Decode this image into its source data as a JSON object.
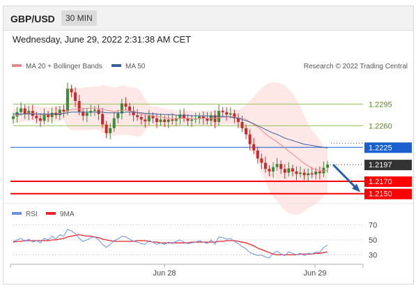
{
  "header": {
    "symbol": "GBP/USD",
    "timeframe": "30 MIN"
  },
  "datetime": "Wednesday, June 29, 2022 2:31:38 AM CET",
  "legend": {
    "ma20_bb": "MA 20 + Bollinger Bands",
    "ma50": "MA 50",
    "source": "Research © 2022 Trading Central"
  },
  "colors": {
    "ma20": "#e88a8a",
    "ma50": "#3a5f9a",
    "bands": "#fde0df",
    "up": "#3a8a3a",
    "down": "#cc2a2a",
    "support": "#ff0000",
    "resistance_green": "#8fbf4a",
    "pivot_blue": "#1a5fd0",
    "rsi": "#6b8ee6",
    "rsi_ma": "#e8242a"
  },
  "chart_data": [
    {
      "type": "candlestick",
      "title": "",
      "ylim": [
        1.2135,
        1.2345
      ],
      "x_labels": [
        "Jun 28",
        "Jun 29"
      ],
      "levels": [
        {
          "value": 1.2295,
          "label": "1.2295",
          "style": "resistance"
        },
        {
          "value": 1.226,
          "label": "1.2260",
          "style": "resistance"
        },
        {
          "value": 1.2225,
          "label": "1.2225",
          "style": "pivot"
        },
        {
          "value": 1.2197,
          "label": "1.2197",
          "style": "last"
        },
        {
          "value": 1.217,
          "label": "1.2170",
          "style": "support"
        },
        {
          "value": 1.215,
          "label": "1.2150",
          "style": "support"
        }
      ],
      "closes": [
        1.2275,
        1.2282,
        1.2288,
        1.2279,
        1.2284,
        1.2276,
        1.2272,
        1.2268,
        1.2278,
        1.2274,
        1.2281,
        1.2277,
        1.2286,
        1.2283,
        1.232,
        1.2314,
        1.23,
        1.2283,
        1.2276,
        1.2281,
        1.2284,
        1.2286,
        1.2279,
        1.2262,
        1.2248,
        1.2256,
        1.2272,
        1.228,
        1.2296,
        1.2291,
        1.2284,
        1.2277,
        1.2274,
        1.227,
        1.2267,
        1.2276,
        1.2272,
        1.2266,
        1.227,
        1.2266,
        1.227,
        1.2268,
        1.2272,
        1.2278,
        1.2272,
        1.2268,
        1.227,
        1.2271,
        1.2275,
        1.2272,
        1.2268,
        1.2277,
        1.2266,
        1.2284,
        1.2282,
        1.2278,
        1.228,
        1.2272,
        1.2266,
        1.2256,
        1.2246,
        1.223,
        1.222,
        1.2207,
        1.22,
        1.219,
        1.2186,
        1.2193,
        1.2198,
        1.219,
        1.2184,
        1.2191,
        1.2186,
        1.2182,
        1.2184,
        1.218,
        1.2183,
        1.2181,
        1.2186,
        1.2183,
        1.2192,
        1.2197
      ],
      "ma20": [
        1.2276,
        1.2277,
        1.2279,
        1.2279,
        1.228,
        1.228,
        1.2279,
        1.2278,
        1.2278,
        1.2278,
        1.2279,
        1.2279,
        1.228,
        1.2281,
        1.2284,
        1.2286,
        1.2287,
        1.2287,
        1.2287,
        1.2288,
        1.2288,
        1.2289,
        1.2288,
        1.2287,
        1.2285,
        1.2284,
        1.2283,
        1.2284,
        1.2285,
        1.2285,
        1.2284,
        1.2283,
        1.2281,
        1.2279,
        1.2278,
        1.2277,
        1.2276,
        1.2275,
        1.2274,
        1.2273,
        1.2272,
        1.2272,
        1.2271,
        1.2272,
        1.2272,
        1.2272,
        1.2272,
        1.2271,
        1.2272,
        1.2272,
        1.2272,
        1.2272,
        1.2272,
        1.2273,
        1.2274,
        1.2274,
        1.2275,
        1.2274,
        1.2273,
        1.2272,
        1.227,
        1.2266,
        1.2262,
        1.2258,
        1.2253,
        1.2247,
        1.2242,
        1.2238,
        1.2234,
        1.2229,
        1.2224,
        1.2219,
        1.2214,
        1.2209,
        1.2204,
        1.2199,
        1.2195,
        1.2191,
        1.2189,
        1.2188,
        1.2187,
        1.2187
      ],
      "ma50": [
        1.2279,
        1.2279,
        1.2279,
        1.2279,
        1.2279,
        1.2279,
        1.2279,
        1.2279,
        1.2279,
        1.2279,
        1.2279,
        1.2279,
        1.2279,
        1.228,
        1.2281,
        1.2282,
        1.2282,
        1.2282,
        1.2282,
        1.2282,
        1.2282,
        1.2282,
        1.2282,
        1.2282,
        1.2281,
        1.2281,
        1.2281,
        1.2281,
        1.2281,
        1.2282,
        1.2282,
        1.2282,
        1.2281,
        1.2281,
        1.228,
        1.228,
        1.2279,
        1.2279,
        1.2278,
        1.2278,
        1.2278,
        1.2278,
        1.2277,
        1.2277,
        1.2277,
        1.2277,
        1.2276,
        1.2276,
        1.2276,
        1.2276,
        1.2276,
        1.2275,
        1.2275,
        1.2275,
        1.2275,
        1.2275,
        1.2274,
        1.2273,
        1.2272,
        1.227,
        1.2268,
        1.2266,
        1.2263,
        1.226,
        1.2257,
        1.2254,
        1.2251,
        1.2248,
        1.2246,
        1.2243,
        1.224,
        1.2238,
        1.2236,
        1.2234,
        1.2232,
        1.223,
        1.2229,
        1.2228,
        1.2227,
        1.2226,
        1.2225,
        1.2224
      ]
    },
    {
      "type": "line",
      "title": "",
      "legend": [
        "RSI",
        "9MA"
      ],
      "ylim": [
        22,
        78
      ],
      "levels": [
        70,
        50,
        30
      ],
      "level_labels": [
        "70",
        "50",
        "30"
      ],
      "rsi": [
        48,
        50,
        52,
        48,
        51,
        47,
        49,
        46,
        52,
        50,
        55,
        51,
        57,
        55,
        64,
        62,
        58,
        52,
        48,
        50,
        53,
        54,
        50,
        44,
        40,
        44,
        49,
        51,
        55,
        54,
        51,
        48,
        47,
        45,
        44,
        49,
        47,
        44,
        46,
        44,
        47,
        45,
        48,
        50,
        47,
        45,
        46,
        47,
        49,
        47,
        45,
        50,
        44,
        54,
        53,
        51,
        52,
        48,
        45,
        41,
        38,
        33,
        31,
        29,
        30,
        27,
        26,
        32,
        35,
        31,
        29,
        34,
        32,
        30,
        32,
        29,
        32,
        31,
        34,
        33,
        40,
        43
      ],
      "ma9": [
        47,
        48,
        48,
        49,
        49,
        49,
        49,
        49,
        49,
        49,
        50,
        50,
        51,
        52,
        54,
        55,
        56,
        57,
        56,
        55,
        55,
        54,
        53,
        51,
        50,
        49,
        48,
        48,
        48,
        48,
        48,
        48,
        49,
        49,
        49,
        48,
        47,
        47,
        46,
        46,
        46,
        46,
        46,
        46,
        46,
        46,
        47,
        47,
        47,
        47,
        47,
        47,
        47,
        48,
        48,
        49,
        49,
        49,
        48,
        47,
        46,
        44,
        42,
        39,
        37,
        35,
        33,
        31,
        30,
        30,
        30,
        30,
        30,
        30,
        31,
        31,
        31,
        31,
        32,
        32,
        33,
        34
      ]
    }
  ]
}
